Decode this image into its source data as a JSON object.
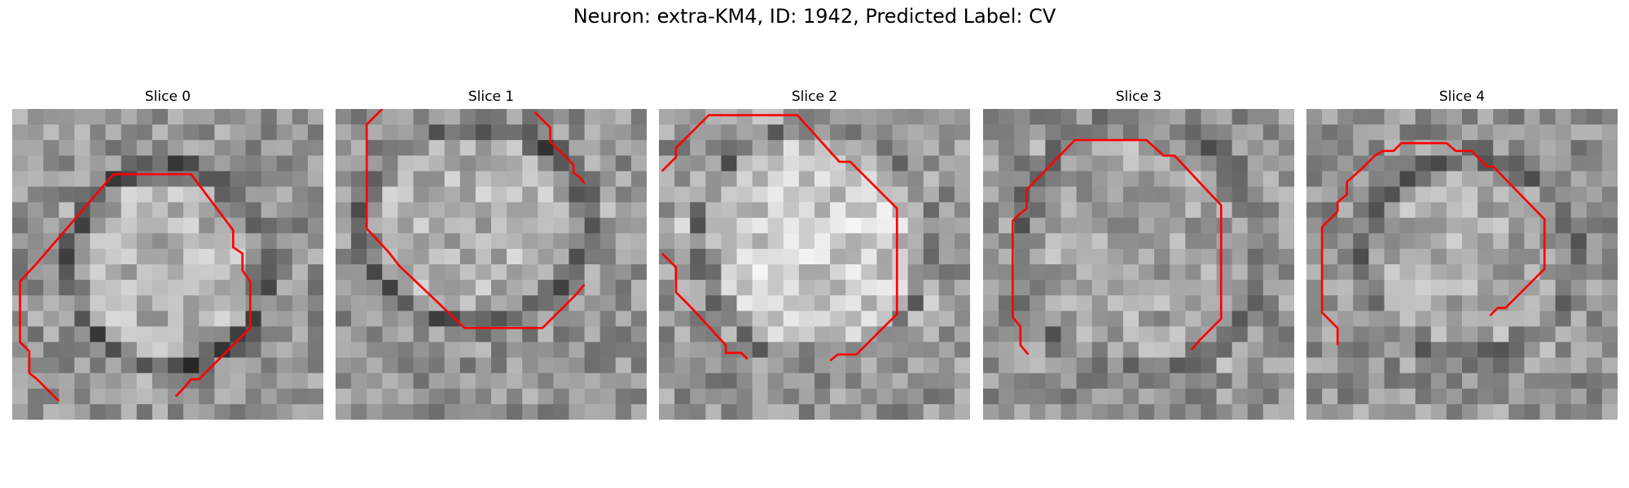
{
  "figure": {
    "title": "Neuron: extra-KM4, ID: 1942, Predicted Label: CV"
  },
  "colors": {
    "contour": "#ff0000",
    "background": "#ffffff"
  },
  "panels": [
    {
      "title": "Slice 0",
      "contours": [
        [
          [
            1.7,
            9.8
          ],
          [
            6.5,
            4.2
          ],
          [
            11.5,
            4.2
          ],
          [
            14.2,
            7.8
          ],
          [
            14.2,
            8.9
          ],
          [
            14.8,
            9.3
          ],
          [
            14.8,
            10.4
          ],
          [
            15.3,
            11.1
          ],
          [
            15.3,
            14.1
          ],
          [
            14.2,
            15.2
          ],
          [
            13.1,
            16.3
          ],
          [
            12.0,
            17.4
          ],
          [
            11.5,
            17.4
          ],
          [
            11.0,
            18.0
          ],
          [
            10.5,
            18.5
          ]
        ],
        [
          [
            1.7,
            9.8
          ],
          [
            0.5,
            11.1
          ],
          [
            0.5,
            15.0
          ],
          [
            1.1,
            15.6
          ],
          [
            1.1,
            17.0
          ],
          [
            1.6,
            17.4
          ],
          [
            1.8,
            17.6
          ],
          [
            2.2,
            18.0
          ],
          [
            3.0,
            18.8
          ]
        ]
      ]
    },
    {
      "title": "Slice 1",
      "contours": [
        [
          [
            3.0,
            0.0
          ],
          [
            2.0,
            1.0
          ],
          [
            2.0,
            7.7
          ],
          [
            3.4,
            9.2
          ],
          [
            4.1,
            10.1
          ],
          [
            8.3,
            14.1
          ],
          [
            13.3,
            14.1
          ],
          [
            15.5,
            11.9
          ],
          [
            16.0,
            11.3
          ]
        ],
        [
          [
            12.8,
            0.2
          ],
          [
            13.8,
            1.2
          ],
          [
            13.8,
            2.1
          ],
          [
            14.6,
            2.9
          ],
          [
            15.3,
            3.6
          ],
          [
            15.3,
            4.1
          ],
          [
            15.7,
            4.4
          ],
          [
            16.0,
            4.8
          ]
        ]
      ]
    },
    {
      "title": "Slice 2",
      "contours": [
        [
          [
            0.2,
            4.0
          ],
          [
            1.1,
            3.1
          ],
          [
            1.1,
            2.5
          ],
          [
            1.7,
            1.9
          ],
          [
            3.2,
            0.4
          ],
          [
            8.9,
            0.4
          ],
          [
            11.6,
            3.4
          ],
          [
            12.3,
            3.4
          ],
          [
            15.3,
            6.4
          ],
          [
            15.3,
            13.2
          ],
          [
            14.7,
            13.8
          ],
          [
            12.7,
            15.8
          ],
          [
            11.5,
            15.8
          ],
          [
            11.0,
            16.2
          ]
        ],
        [
          [
            0.2,
            9.3
          ],
          [
            1.1,
            10.2
          ],
          [
            1.1,
            11.8
          ],
          [
            2.0,
            12.7
          ],
          [
            4.3,
            15.2
          ],
          [
            4.3,
            15.7
          ],
          [
            5.3,
            15.7
          ],
          [
            5.7,
            16.1
          ]
        ]
      ]
    },
    {
      "title": "Slice 3",
      "contours": [
        [
          [
            2.8,
            5.2
          ],
          [
            2.8,
            6.4
          ],
          [
            2.3,
            6.8
          ],
          [
            1.9,
            7.2
          ],
          [
            1.9,
            13.4
          ],
          [
            2.4,
            14.0
          ],
          [
            2.4,
            15.2
          ],
          [
            2.9,
            15.8
          ]
        ],
        [
          [
            2.8,
            5.2
          ],
          [
            5.9,
            2.0
          ],
          [
            10.5,
            2.0
          ],
          [
            11.6,
            3.0
          ],
          [
            12.3,
            3.0
          ],
          [
            15.3,
            6.2
          ],
          [
            15.3,
            13.5
          ],
          [
            14.4,
            14.4
          ],
          [
            13.9,
            14.9
          ],
          [
            13.4,
            15.5
          ]
        ]
      ]
    },
    {
      "title": "Slice 4",
      "contours": [
        [
          [
            2.0,
            6.6
          ],
          [
            2.0,
            6.0
          ],
          [
            2.6,
            5.5
          ],
          [
            2.6,
            4.7
          ],
          [
            3.5,
            3.9
          ],
          [
            4.4,
            3.0
          ],
          [
            4.9,
            2.7
          ],
          [
            5.6,
            2.7
          ],
          [
            6.1,
            2.2
          ],
          [
            9.0,
            2.2
          ],
          [
            9.6,
            2.7
          ],
          [
            10.6,
            2.7
          ],
          [
            11.6,
            3.7
          ],
          [
            12.0,
            3.7
          ],
          [
            15.3,
            7.1
          ],
          [
            15.3,
            10.3
          ],
          [
            14.2,
            11.4
          ],
          [
            12.8,
            12.8
          ],
          [
            12.3,
            12.8
          ],
          [
            11.8,
            13.3
          ]
        ],
        [
          [
            2.0,
            6.6
          ],
          [
            1.0,
            7.6
          ],
          [
            1.0,
            13.1
          ],
          [
            2.0,
            14.1
          ],
          [
            2.0,
            15.2
          ]
        ]
      ]
    }
  ]
}
